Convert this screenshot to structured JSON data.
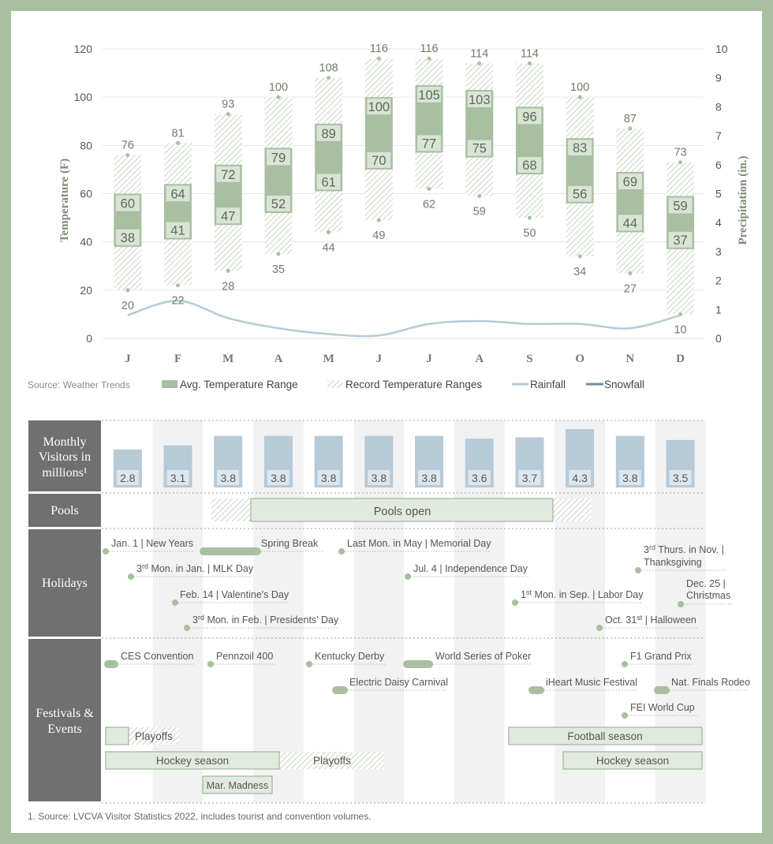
{
  "chart_data": [
    {
      "type": "range-bar-with-lines",
      "categories": [
        "J",
        "F",
        "M",
        "A",
        "M",
        "J",
        "J",
        "A",
        "S",
        "O",
        "N",
        "D"
      ],
      "ylabel": "Temperature (F)",
      "y2label": "Precipitation (in.)",
      "ylim": [
        0,
        120
      ],
      "y2lim": [
        0,
        10
      ],
      "yticks": [
        "0",
        "20",
        "40",
        "60",
        "80",
        "100",
        "120"
      ],
      "y2ticks": [
        "0",
        "1",
        "2",
        "3",
        "4",
        "5",
        "6",
        "7",
        "8",
        "9",
        "10"
      ],
      "grid": true,
      "avg_low": [
        38,
        41,
        47,
        52,
        61,
        70,
        77,
        75,
        68,
        56,
        44,
        37
      ],
      "avg_high": [
        60,
        64,
        72,
        79,
        89,
        100,
        105,
        103,
        96,
        83,
        69,
        59
      ],
      "record_low": [
        20,
        22,
        28,
        35,
        44,
        49,
        62,
        59,
        50,
        34,
        27,
        10
      ],
      "record_high": [
        76,
        81,
        93,
        100,
        108,
        116,
        116,
        114,
        114,
        100,
        87,
        73
      ],
      "rainfall": [
        0.8,
        1.3,
        0.7,
        0.35,
        0.15,
        0.1,
        0.5,
        0.6,
        0.5,
        0.5,
        0.35,
        0.8
      ],
      "snowfall": [
        0,
        0,
        0,
        0,
        0,
        0,
        0,
        0,
        0,
        0,
        0,
        0
      ],
      "source": "Source: Weather Trends",
      "legend": [
        {
          "label": "Avg. Temperature Range",
          "swatch": "solid"
        },
        {
          "label": "Record Temperature Ranges",
          "swatch": "hatch"
        },
        {
          "label": "Rainfall",
          "swatch": "line-light"
        },
        {
          "label": "Snowfall",
          "swatch": "line-dark"
        }
      ],
      "colors": {
        "avg": "#a8bfa2",
        "record": "#c9d5c5",
        "rain": "#b5cad8",
        "snow": "#6f8ca3",
        "text": "#6f7b69"
      }
    },
    {
      "type": "bar",
      "title": "Monthly Visitors in millions¹",
      "categories": [
        "J",
        "F",
        "M",
        "A",
        "M",
        "J",
        "J",
        "A",
        "S",
        "O",
        "N",
        "D"
      ],
      "values": [
        2.8,
        3.1,
        3.8,
        3.8,
        3.8,
        3.8,
        3.8,
        3.6,
        3.7,
        4.3,
        3.8,
        3.5
      ],
      "value_labels": [
        "2.8",
        "3.1",
        "3.8",
        "3.8",
        "3.8",
        "3.8",
        "3.8",
        "3.6",
        "3.7",
        "4.3",
        "3.8",
        "3.5"
      ],
      "colors": {
        "bar": "#b6cad8"
      }
    }
  ],
  "calendar": {
    "rows": {
      "pools": "Pools",
      "holidays": "Holidays",
      "festivals": "Festivals & Events"
    },
    "pools_bar": "Pools open",
    "holidays": [
      {
        "label": "Jan. 1 | New Years"
      },
      {
        "label": "3rd Mon. in Jan. | MLK Day"
      },
      {
        "label": "Feb. 14 | Valentine's Day"
      },
      {
        "label": "3rd Mon. in Feb. | Presidents' Day"
      },
      {
        "label": "Spring Break"
      },
      {
        "label": "Last Mon. in May | Memorial Day"
      },
      {
        "label": "Jul. 4 | Independence Day"
      },
      {
        "label": "1st Mon. in Sep. | Labor Day"
      },
      {
        "label": "Oct. 31st | Halloween"
      },
      {
        "label": "3rd Thurs. in Nov. |"
      },
      {
        "label": "Thanksgiving"
      },
      {
        "label": "Dec. 25 |"
      },
      {
        "label": "Christmas"
      }
    ],
    "events": [
      {
        "label": "CES Convention"
      },
      {
        "label": "Pennzoil 400"
      },
      {
        "label": "Kentucky Derby"
      },
      {
        "label": "World Series of Poker"
      },
      {
        "label": "Electric Daisy Carnival"
      },
      {
        "label": "F1 Grand Prix"
      },
      {
        "label": "iHeart Music Festival"
      },
      {
        "label": "Nat. Finals Rodeo"
      },
      {
        "label": "FEI World Cup"
      }
    ],
    "bars": {
      "playoffs": "Playoffs",
      "football": "Football season",
      "hockey": "Hockey season",
      "march_madness": "Mar. Madness"
    },
    "footnote": "1. Source: LVCVA Visitor Statistics 2022, includes tourist and convention volumes."
  }
}
